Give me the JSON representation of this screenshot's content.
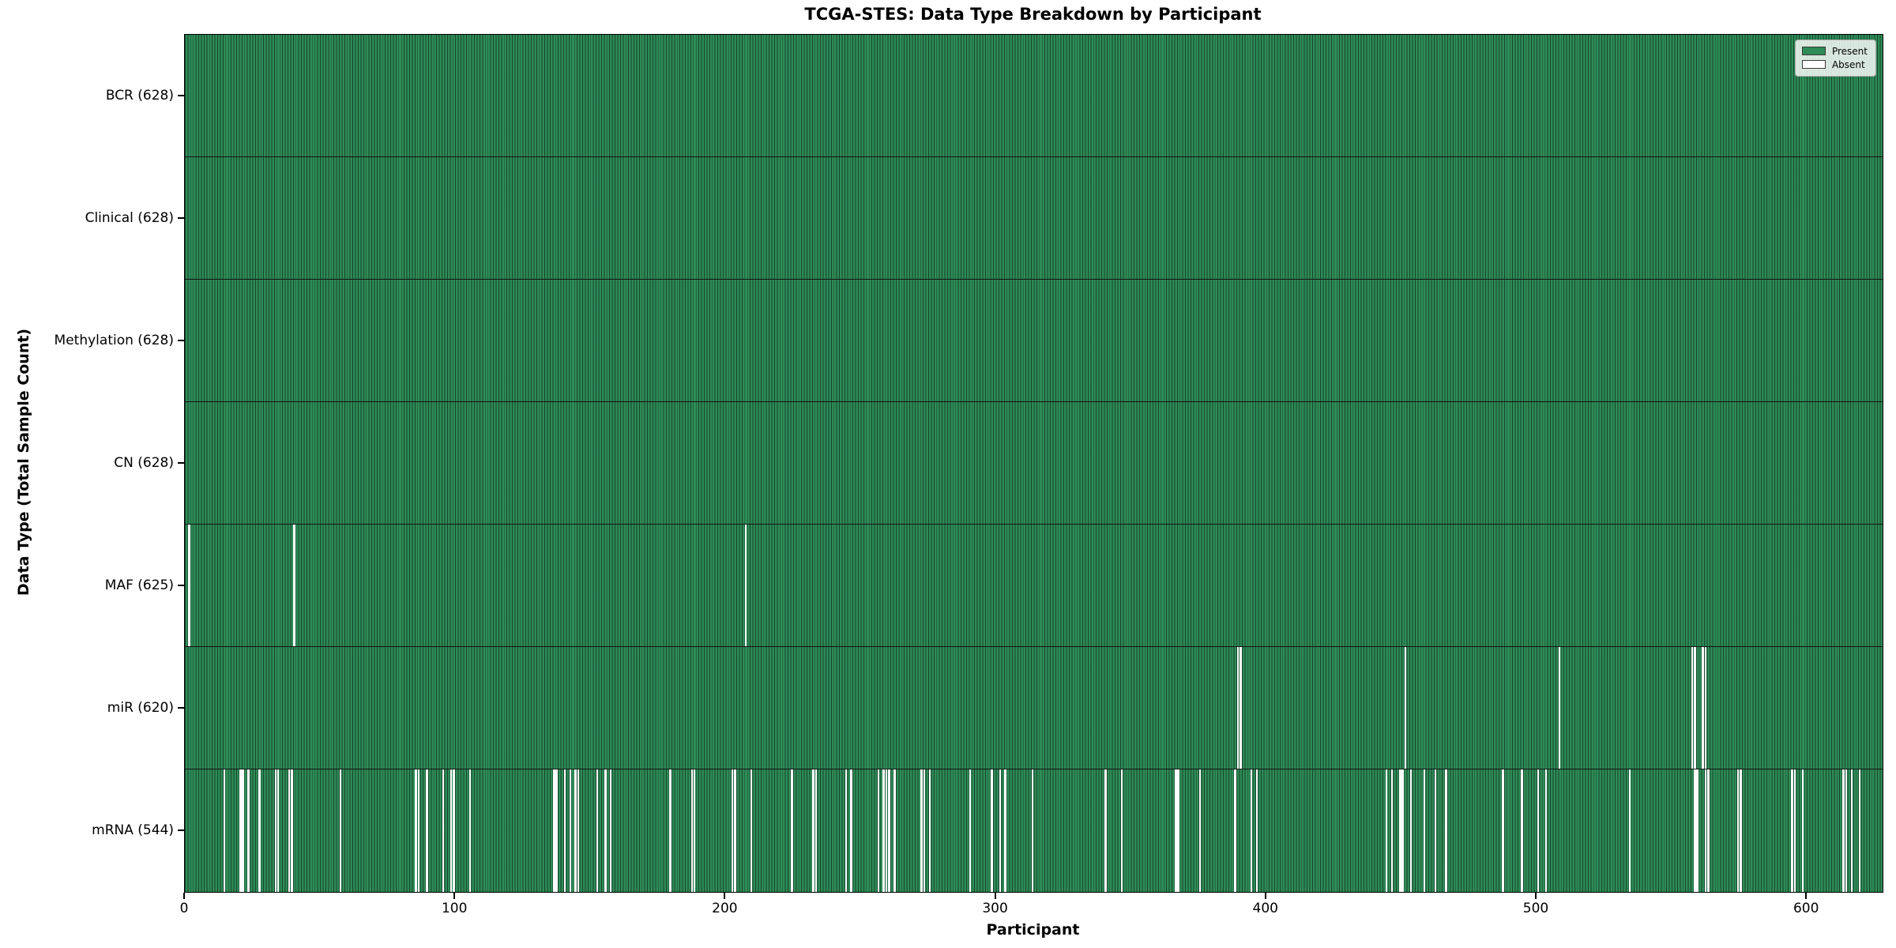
{
  "chart_data": {
    "type": "heatmap",
    "title": "TCGA-STES: Data Type Breakdown by Participant",
    "xlabel": "Participant",
    "ylabel": "Data Type (Total Sample Count)",
    "n_participants": 628,
    "x_ticks": [
      0,
      100,
      200,
      300,
      400,
      500,
      600
    ],
    "legend_position": "upper right",
    "colors": {
      "present": "#2e8b57",
      "bar_edge": "rgba(0,0,0,0.5)",
      "absent": "#fdfdfd",
      "frame": "#000000"
    },
    "legend": [
      {
        "label": "Present",
        "color": "#2e8b57"
      },
      {
        "label": "Absent",
        "color": "#ffffff"
      }
    ],
    "rows": [
      {
        "label": "BCR (628)",
        "name": "BCR",
        "present_count": 628,
        "absent": []
      },
      {
        "label": "Clinical (628)",
        "name": "Clinical",
        "present_count": 628,
        "absent": []
      },
      {
        "label": "Methylation (628)",
        "name": "Methylation",
        "present_count": 628,
        "absent": []
      },
      {
        "label": "CN (628)",
        "name": "CN",
        "present_count": 628,
        "absent": []
      },
      {
        "label": "MAF (625)",
        "name": "MAF",
        "present_count": 625,
        "absent": [
          1,
          40,
          207
        ]
      },
      {
        "label": "miR (620)",
        "name": "miR",
        "present_count": 620,
        "absent": [
          389,
          390,
          451,
          508,
          557,
          558,
          561,
          562
        ]
      },
      {
        "label": "mRNA (544)",
        "name": "mRNA",
        "present_count": 544,
        "absent": [
          14,
          20,
          21,
          23,
          27,
          33,
          34,
          38,
          39,
          57,
          85,
          86,
          89,
          95,
          98,
          99,
          105,
          136,
          137,
          140,
          142,
          144,
          145,
          152,
          155,
          157,
          179,
          187,
          188,
          202,
          203,
          209,
          224,
          232,
          233,
          244,
          246,
          256,
          258,
          259,
          260,
          262,
          272,
          273,
          275,
          290,
          298,
          301,
          303,
          313,
          340,
          346,
          366,
          367,
          375,
          388,
          394,
          396,
          444,
          446,
          449,
          450,
          453,
          458,
          462,
          466,
          487,
          494,
          500,
          503,
          534,
          558,
          559,
          562,
          563,
          574,
          575,
          594,
          595,
          598,
          613,
          614,
          616,
          619
        ]
      }
    ]
  }
}
